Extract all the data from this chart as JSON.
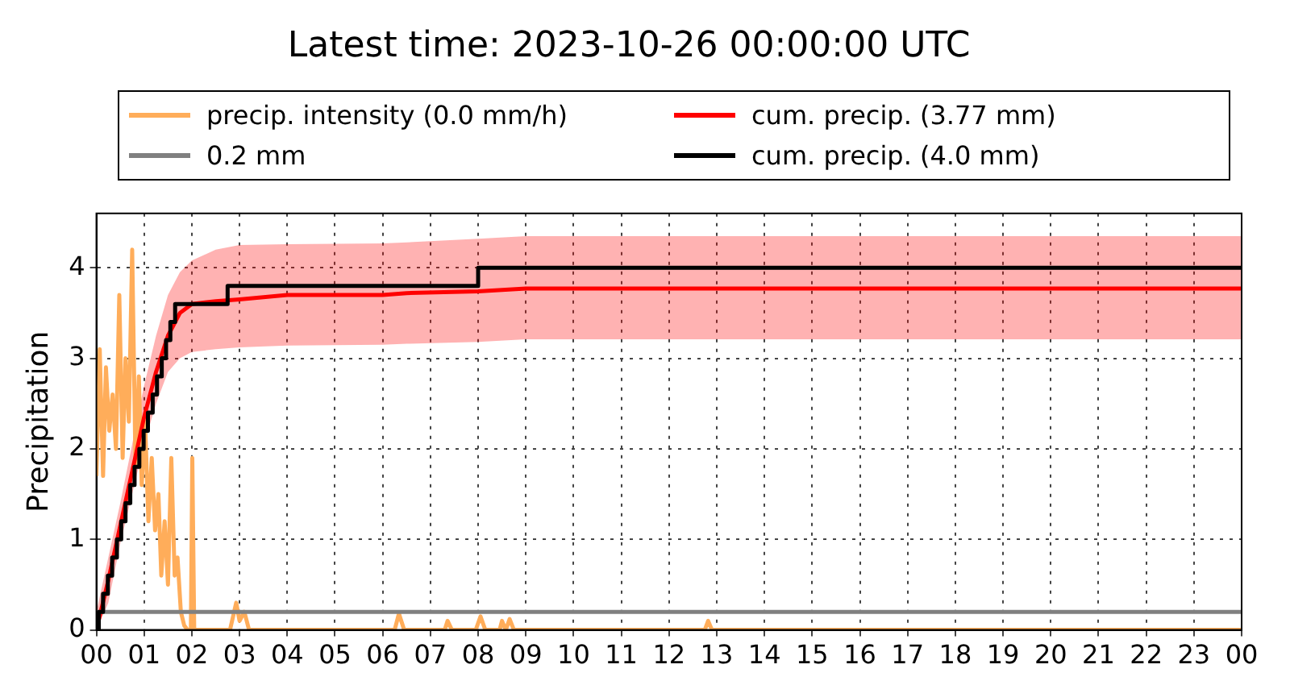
{
  "chart_data": {
    "type": "line",
    "title": "Latest time: 2023-10-26 00:00:00 UTC",
    "ylabel": "Precipitation",
    "xlim": [
      0,
      24
    ],
    "xticks": [
      {
        "value": 0,
        "label": "00"
      },
      {
        "value": 1,
        "label": "01"
      },
      {
        "value": 2,
        "label": "02"
      },
      {
        "value": 3,
        "label": "03"
      },
      {
        "value": 4,
        "label": "04"
      },
      {
        "value": 5,
        "label": "05"
      },
      {
        "value": 6,
        "label": "06"
      },
      {
        "value": 7,
        "label": "07"
      },
      {
        "value": 8,
        "label": "08"
      },
      {
        "value": 9,
        "label": "09"
      },
      {
        "value": 10,
        "label": "10"
      },
      {
        "value": 11,
        "label": "11"
      },
      {
        "value": 12,
        "label": "12"
      },
      {
        "value": 13,
        "label": "13"
      },
      {
        "value": 14,
        "label": "14"
      },
      {
        "value": 15,
        "label": "15"
      },
      {
        "value": 16,
        "label": "16"
      },
      {
        "value": 17,
        "label": "17"
      },
      {
        "value": 18,
        "label": "18"
      },
      {
        "value": 19,
        "label": "19"
      },
      {
        "value": 20,
        "label": "20"
      },
      {
        "value": 21,
        "label": "21"
      },
      {
        "value": 22,
        "label": "22"
      },
      {
        "value": 23,
        "label": "23"
      },
      {
        "value": 24,
        "label": "00"
      }
    ],
    "ylim": [
      0,
      4.6
    ],
    "yticks": [
      0,
      1,
      2,
      3,
      4
    ],
    "grid": true,
    "legend": "top",
    "marker": "none",
    "line_style": "solid",
    "series": [
      {
        "name": "precip. intensity (0.0 mm/h)",
        "color": "#ffad5a",
        "x": [
          0,
          0.07,
          0.14,
          0.2,
          0.27,
          0.34,
          0.41,
          0.48,
          0.55,
          0.61,
          0.68,
          0.75,
          0.82,
          0.89,
          0.95,
          1.02,
          1.09,
          1.16,
          1.23,
          1.3,
          1.36,
          1.43,
          1.5,
          1.57,
          1.64,
          1.7,
          1.77,
          1.84,
          1.91,
          1.98,
          2.01,
          2.05,
          2.8,
          2.93,
          3.0,
          3.1,
          3.2,
          6.25,
          6.34,
          6.45,
          7.3,
          7.36,
          7.45,
          7.95,
          8.05,
          8.15,
          8.45,
          8.5,
          8.58,
          8.66,
          8.75,
          12.75,
          12.82,
          12.9,
          24
        ],
        "values": [
          1.7,
          3.1,
          1.7,
          2.9,
          2.2,
          2.6,
          2.0,
          3.7,
          1.9,
          3.0,
          2.3,
          4.2,
          1.8,
          2.8,
          1.6,
          2.3,
          1.2,
          1.9,
          1.1,
          1.5,
          0.6,
          1.2,
          0.5,
          1.9,
          0.6,
          0.8,
          0.2,
          0.05,
          0,
          0,
          1.9,
          0,
          0,
          0.3,
          0.1,
          0.2,
          0,
          0,
          0.18,
          0,
          0,
          0.1,
          0,
          0,
          0.15,
          0,
          0,
          0.1,
          0,
          0.12,
          0,
          0,
          0.1,
          0,
          0
        ]
      },
      {
        "name": "cum. precip. (3.77 mm)",
        "color": "#ff0000",
        "x": [
          0,
          0.25,
          0.5,
          0.75,
          1,
          1.25,
          1.5,
          1.75,
          2,
          2.5,
          3,
          4,
          6,
          6.5,
          8,
          9,
          24
        ],
        "values": [
          0,
          0.55,
          1.15,
          1.75,
          2.35,
          2.85,
          3.25,
          3.5,
          3.6,
          3.63,
          3.65,
          3.7,
          3.7,
          3.72,
          3.74,
          3.77,
          3.77
        ],
        "lower": [
          0,
          0.3,
          0.95,
          1.5,
          2.05,
          2.5,
          2.85,
          3.0,
          3.07,
          3.1,
          3.12,
          3.14,
          3.15,
          3.16,
          3.18,
          3.21,
          3.21
        ],
        "upper": [
          0.2,
          0.8,
          1.4,
          2.05,
          2.7,
          3.25,
          3.7,
          3.95,
          4.08,
          4.2,
          4.25,
          4.26,
          4.27,
          4.28,
          4.32,
          4.35,
          4.35
        ]
      },
      {
        "name": "0.2 mm",
        "color": "#808080",
        "x": [
          0,
          24
        ],
        "values": [
          0.2,
          0.2
        ]
      },
      {
        "name": "cum. precip. (4.0 mm)",
        "color": "#000000",
        "type": "step",
        "x": [
          0,
          0.05,
          0.14,
          0.24,
          0.33,
          0.43,
          0.52,
          0.61,
          0.71,
          0.8,
          0.9,
          0.99,
          1.08,
          1.18,
          1.27,
          1.37,
          1.46,
          1.55,
          1.65,
          2.75,
          8.0,
          24
        ],
        "values": [
          0,
          0.2,
          0.4,
          0.6,
          0.8,
          1.0,
          1.2,
          1.4,
          1.6,
          1.8,
          2.0,
          2.2,
          2.4,
          2.6,
          2.8,
          3.0,
          3.2,
          3.4,
          3.6,
          3.8,
          4.0,
          4.0
        ]
      }
    ]
  }
}
